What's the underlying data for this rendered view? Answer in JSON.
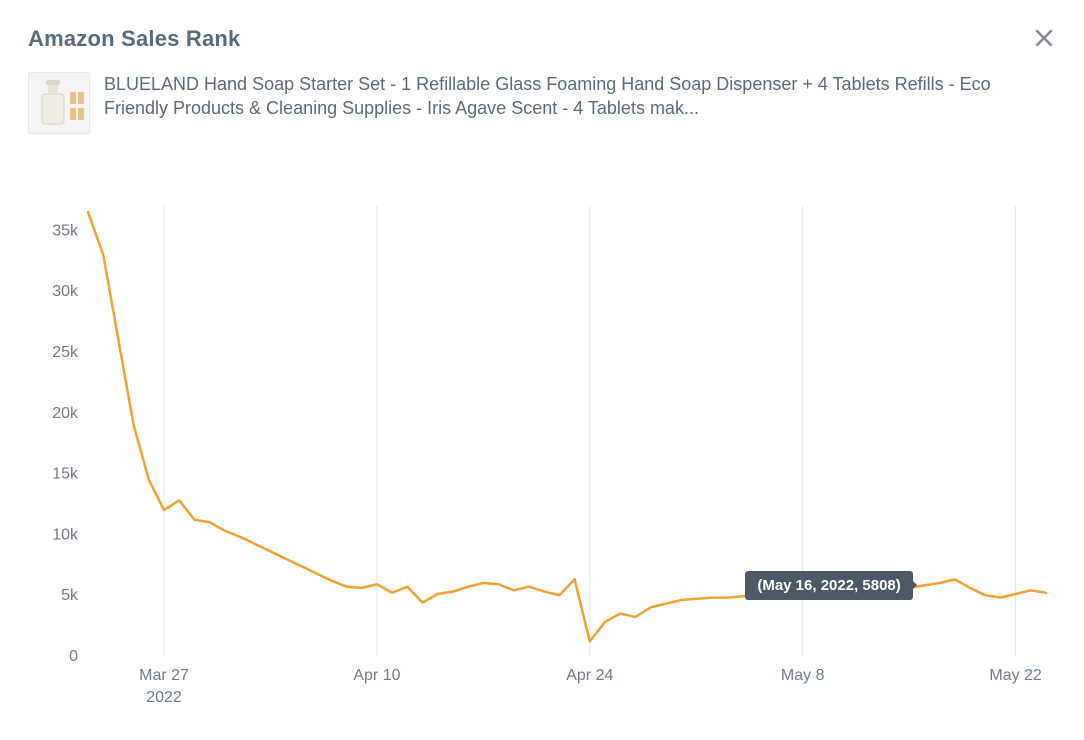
{
  "header": {
    "title": "Amazon Sales Rank"
  },
  "product": {
    "title": "BLUELAND Hand Soap Starter Set - 1 Refillable Glass Foaming Hand Soap Dispenser + 4 Tablets Refills - Eco Friendly Products & Cleaning Supplies - Iris Agave Scent - 4 Tablets mak..."
  },
  "chart": {
    "type": "line",
    "line_color": "#f2a135",
    "line_width": 2.5,
    "background_color": "#ffffff",
    "grid_color": "#e6e6e6",
    "axis_label_color": "#6e7c8a",
    "axis_label_fontsize": 16,
    "tooltip_bg": "#4d5a66",
    "tooltip_text_color": "#ffffff",
    "ylim": [
      0,
      37000
    ],
    "yticks": [
      0,
      5000,
      10000,
      15000,
      20000,
      25000,
      30000,
      35000
    ],
    "ytick_labels": [
      "0",
      "5k",
      "10k",
      "15k",
      "20k",
      "25k",
      "30k",
      "35k"
    ],
    "year_label": "2022",
    "xtick_indices": [
      5,
      19,
      33,
      47,
      61
    ],
    "xtick_labels": [
      "Mar 27",
      "Apr 10",
      "Apr 24",
      "May 8",
      "May 22"
    ],
    "tooltip": {
      "label": "(May 16, 2022, 5808)",
      "point_index": 55
    },
    "series": [
      {
        "x": 0,
        "y": 36500
      },
      {
        "x": 1,
        "y": 33000
      },
      {
        "x": 2,
        "y": 26000
      },
      {
        "x": 3,
        "y": 19000
      },
      {
        "x": 4,
        "y": 14500
      },
      {
        "x": 5,
        "y": 12000
      },
      {
        "x": 6,
        "y": 12800
      },
      {
        "x": 7,
        "y": 11200
      },
      {
        "x": 8,
        "y": 11000
      },
      {
        "x": 9,
        "y": 10300
      },
      {
        "x": 10,
        "y": 9800
      },
      {
        "x": 11,
        "y": 9200
      },
      {
        "x": 12,
        "y": 8600
      },
      {
        "x": 13,
        "y": 8000
      },
      {
        "x": 14,
        "y": 7400
      },
      {
        "x": 15,
        "y": 6800
      },
      {
        "x": 16,
        "y": 6200
      },
      {
        "x": 17,
        "y": 5700
      },
      {
        "x": 18,
        "y": 5600
      },
      {
        "x": 19,
        "y": 5900
      },
      {
        "x": 20,
        "y": 5200
      },
      {
        "x": 21,
        "y": 5700
      },
      {
        "x": 22,
        "y": 4400
      },
      {
        "x": 23,
        "y": 5100
      },
      {
        "x": 24,
        "y": 5300
      },
      {
        "x": 25,
        "y": 5700
      },
      {
        "x": 26,
        "y": 6000
      },
      {
        "x": 27,
        "y": 5900
      },
      {
        "x": 28,
        "y": 5400
      },
      {
        "x": 29,
        "y": 5700
      },
      {
        "x": 30,
        "y": 5300
      },
      {
        "x": 31,
        "y": 5000
      },
      {
        "x": 32,
        "y": 6300
      },
      {
        "x": 33,
        "y": 1200
      },
      {
        "x": 34,
        "y": 2800
      },
      {
        "x": 35,
        "y": 3500
      },
      {
        "x": 36,
        "y": 3200
      },
      {
        "x": 37,
        "y": 4000
      },
      {
        "x": 38,
        "y": 4300
      },
      {
        "x": 39,
        "y": 4600
      },
      {
        "x": 40,
        "y": 4700
      },
      {
        "x": 41,
        "y": 4800
      },
      {
        "x": 42,
        "y": 4800
      },
      {
        "x": 43,
        "y": 4900
      },
      {
        "x": 44,
        "y": 5000
      },
      {
        "x": 45,
        "y": 5000
      },
      {
        "x": 46,
        "y": 5100
      },
      {
        "x": 47,
        "y": 5200
      },
      {
        "x": 48,
        "y": 5200
      },
      {
        "x": 49,
        "y": 5300
      },
      {
        "x": 50,
        "y": 5400
      },
      {
        "x": 51,
        "y": 5400
      },
      {
        "x": 52,
        "y": 5400
      },
      {
        "x": 53,
        "y": 5400
      },
      {
        "x": 54,
        "y": 5600
      },
      {
        "x": 55,
        "y": 5808
      },
      {
        "x": 56,
        "y": 6000
      },
      {
        "x": 57,
        "y": 6300
      },
      {
        "x": 58,
        "y": 5600
      },
      {
        "x": 59,
        "y": 5000
      },
      {
        "x": 60,
        "y": 4800
      },
      {
        "x": 61,
        "y": 5100
      },
      {
        "x": 62,
        "y": 5400
      },
      {
        "x": 63,
        "y": 5200
      }
    ]
  }
}
